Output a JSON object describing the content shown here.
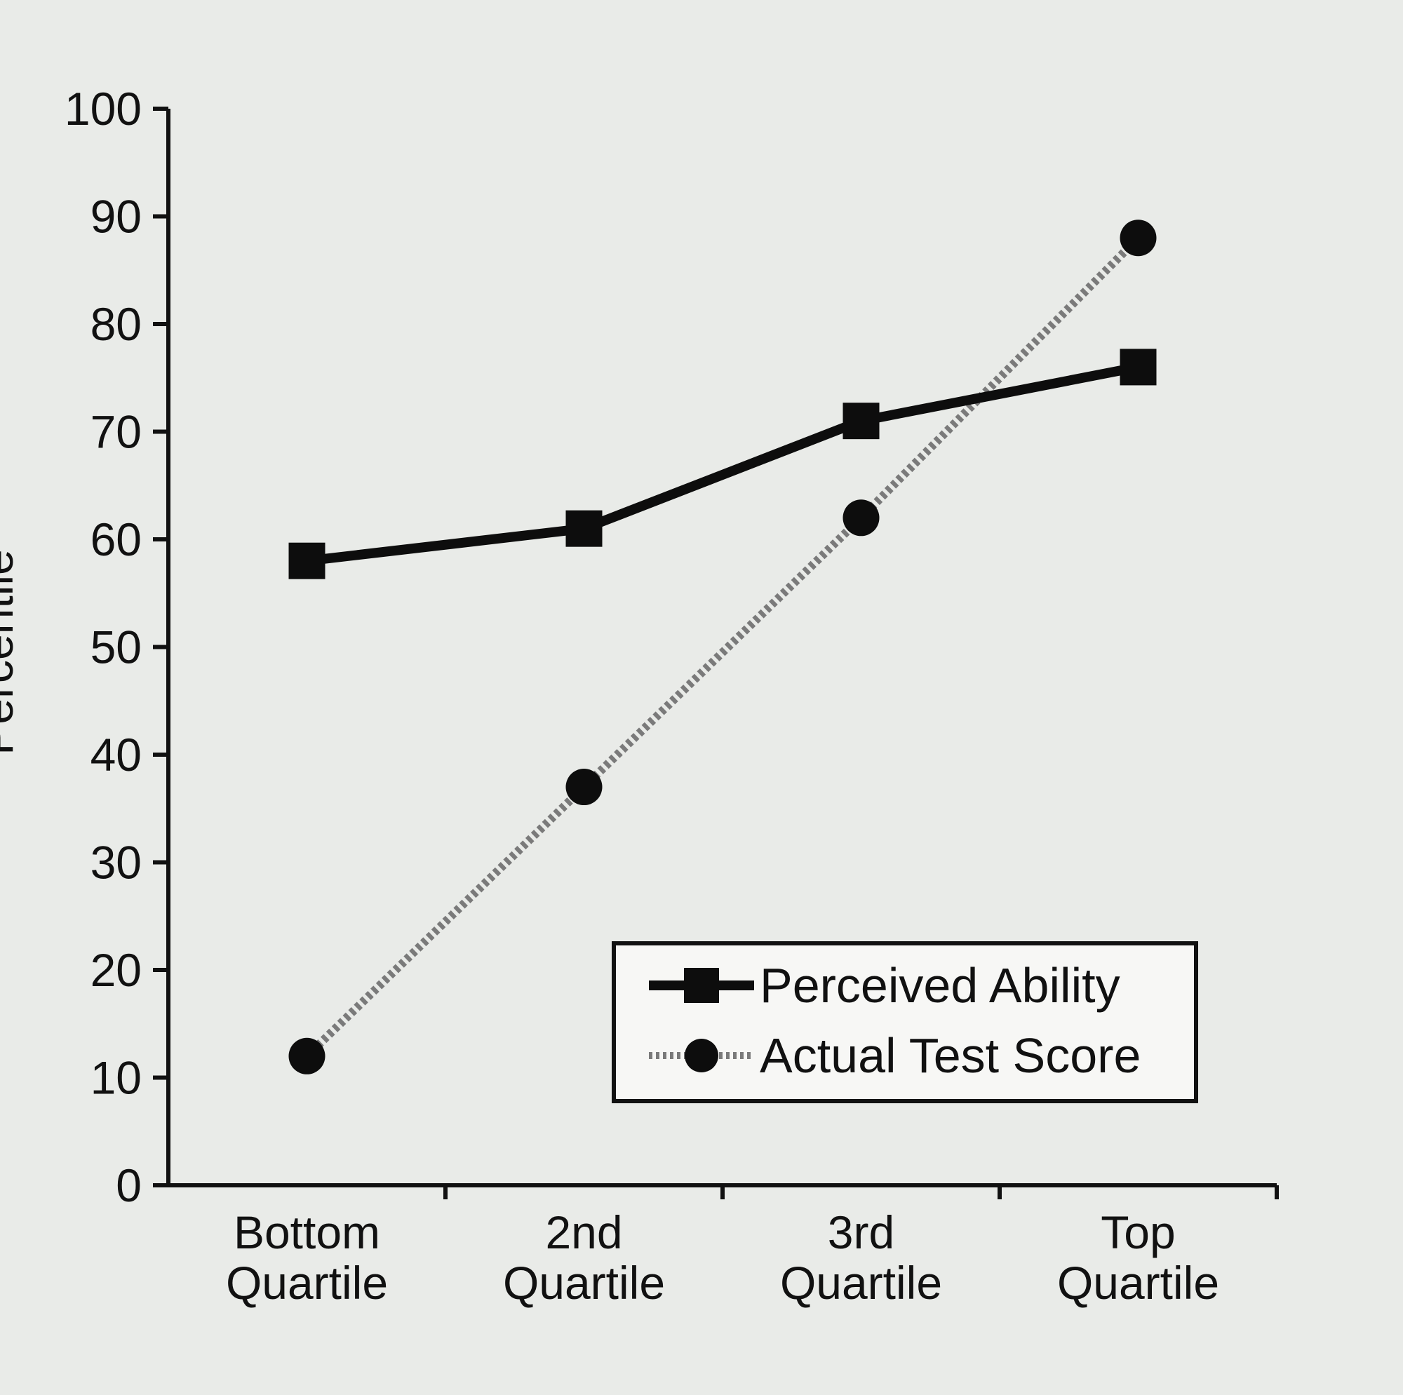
{
  "chart_data": {
    "type": "line",
    "categories": [
      [
        "Bottom",
        "Quartile"
      ],
      [
        "2nd",
        "Quartile"
      ],
      [
        "3rd",
        "Quartile"
      ],
      [
        "Top",
        "Quartile"
      ]
    ],
    "ylabel": "Percentile",
    "ylim": [
      0,
      100
    ],
    "yticks": [
      0,
      10,
      20,
      30,
      40,
      50,
      60,
      70,
      80,
      90,
      100
    ],
    "grid": false,
    "legend_position": "bottom-right",
    "series": [
      {
        "name": "Perceived Ability",
        "values": [
          58,
          61,
          71,
          76
        ],
        "marker": "square",
        "line_style": "solid",
        "color": "#0d0d0d"
      },
      {
        "name": "Actual Test Score",
        "values": [
          12,
          37,
          62,
          88
        ],
        "marker": "circle",
        "line_style": "dotted",
        "color": "#7a7a7a"
      }
    ]
  }
}
